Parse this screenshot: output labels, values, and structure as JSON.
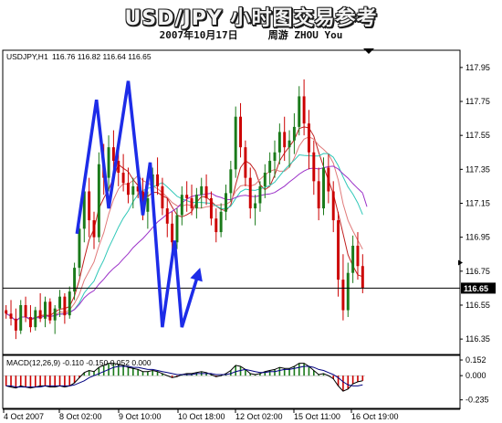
{
  "header": {
    "title": "USD/JPY 小时图交易参考",
    "date": "2007年10月17日",
    "author": "周游 ZHOU You"
  },
  "chart_data": {
    "type": "candlestick",
    "symbol_label": "USDJPY,H1",
    "ohlc_label": "116.76 116.82 116.64 116.65",
    "current_price_label": "116.65",
    "current_price": 116.65,
    "ylim": [
      116.27,
      117.96
    ],
    "y_ticks": [
      "117.95",
      "117.75",
      "117.55",
      "117.35",
      "117.15",
      "116.95",
      "116.75",
      "116.55",
      "116.35"
    ],
    "x_labels": [
      "4 Oct 2007",
      "8 Oct 02:00",
      "9 Oct 10:00",
      "10 Oct 18:00",
      "12 Oct 02:00",
      "15 Oct 11:00",
      "16 Oct 19:00"
    ],
    "candles": [
      [
        116.52,
        116.55,
        116.47,
        116.5
      ],
      [
        116.5,
        116.58,
        116.43,
        116.47
      ],
      [
        116.47,
        116.53,
        116.35,
        116.4
      ],
      [
        116.4,
        116.58,
        116.38,
        116.55
      ],
      [
        116.55,
        116.6,
        116.45,
        116.48
      ],
      [
        116.48,
        116.55,
        116.39,
        116.42
      ],
      [
        116.42,
        116.54,
        116.4,
        116.52
      ],
      [
        116.52,
        116.62,
        116.45,
        116.47
      ],
      [
        116.47,
        116.6,
        116.42,
        116.57
      ],
      [
        116.57,
        116.59,
        116.44,
        116.46
      ],
      [
        116.46,
        116.55,
        116.38,
        116.53
      ],
      [
        116.53,
        116.64,
        116.48,
        116.6
      ],
      [
        116.6,
        116.62,
        116.44,
        116.49
      ],
      [
        116.49,
        116.66,
        116.47,
        116.63
      ],
      [
        116.63,
        116.8,
        116.58,
        116.77
      ],
      [
        116.77,
        117.08,
        116.72,
        117.0
      ],
      [
        117.0,
        117.28,
        116.92,
        117.22
      ],
      [
        117.22,
        117.3,
        116.95,
        117.05
      ],
      [
        117.05,
        117.1,
        116.88,
        116.95
      ],
      [
        116.95,
        117.45,
        116.92,
        117.38
      ],
      [
        117.38,
        117.5,
        117.2,
        117.3
      ],
      [
        117.3,
        117.55,
        117.22,
        117.48
      ],
      [
        117.48,
        117.58,
        117.35,
        117.4
      ],
      [
        117.4,
        117.5,
        117.25,
        117.33
      ],
      [
        117.33,
        117.44,
        117.22,
        117.27
      ],
      [
        117.27,
        117.36,
        117.15,
        117.2
      ],
      [
        117.2,
        117.3,
        117.12,
        117.25
      ],
      [
        117.25,
        117.34,
        117.18,
        117.22
      ],
      [
        117.22,
        117.3,
        117.05,
        117.1
      ],
      [
        117.1,
        117.22,
        117.0,
        117.18
      ],
      [
        117.18,
        117.36,
        117.14,
        117.32
      ],
      [
        117.32,
        117.42,
        117.2,
        117.25
      ],
      [
        117.25,
        117.3,
        117.08,
        117.12
      ],
      [
        117.12,
        117.18,
        116.95,
        117.03
      ],
      [
        117.03,
        117.1,
        116.85,
        116.92
      ],
      [
        116.92,
        117.12,
        116.88,
        117.08
      ],
      [
        117.08,
        117.25,
        117.02,
        117.2
      ],
      [
        117.2,
        117.28,
        117.1,
        117.18
      ],
      [
        117.18,
        117.26,
        117.08,
        117.12
      ],
      [
        117.12,
        117.24,
        117.06,
        117.2
      ],
      [
        117.2,
        117.3,
        117.12,
        117.25
      ],
      [
        117.25,
        117.32,
        117.14,
        117.18
      ],
      [
        117.18,
        117.22,
        117.02,
        117.06
      ],
      [
        117.06,
        117.12,
        116.92,
        116.98
      ],
      [
        116.98,
        117.15,
        116.95,
        117.1
      ],
      [
        117.1,
        117.26,
        117.05,
        117.21
      ],
      [
        117.21,
        117.4,
        117.16,
        117.35
      ],
      [
        117.35,
        117.72,
        117.3,
        117.66
      ],
      [
        117.66,
        117.74,
        117.42,
        117.48
      ],
      [
        117.48,
        117.52,
        117.25,
        117.3
      ],
      [
        117.3,
        117.36,
        117.06,
        117.12
      ],
      [
        117.12,
        117.2,
        117.02,
        117.15
      ],
      [
        117.15,
        117.28,
        117.1,
        117.25
      ],
      [
        117.25,
        117.38,
        117.18,
        117.33
      ],
      [
        117.33,
        117.45,
        117.26,
        117.4
      ],
      [
        117.4,
        117.52,
        117.3,
        117.45
      ],
      [
        117.45,
        117.62,
        117.38,
        117.57
      ],
      [
        117.57,
        117.66,
        117.4,
        117.48
      ],
      [
        117.48,
        117.58,
        117.36,
        117.52
      ],
      [
        117.52,
        117.68,
        117.44,
        117.6
      ],
      [
        117.6,
        117.84,
        117.55,
        117.78
      ],
      [
        117.78,
        117.88,
        117.55,
        117.62
      ],
      [
        117.62,
        117.7,
        117.35,
        117.45
      ],
      [
        117.45,
        117.52,
        117.2,
        117.28
      ],
      [
        117.28,
        117.36,
        117.05,
        117.12
      ],
      [
        117.12,
        117.42,
        117.08,
        117.36
      ],
      [
        117.36,
        117.44,
        117.15,
        117.22
      ],
      [
        117.22,
        117.28,
        116.98,
        117.05
      ],
      [
        117.05,
        117.1,
        116.6,
        116.7
      ],
      [
        116.7,
        116.85,
        116.46,
        116.52
      ],
      [
        116.52,
        116.8,
        116.48,
        116.74
      ],
      [
        116.74,
        116.96,
        116.68,
        116.9
      ],
      [
        116.9,
        116.98,
        116.7,
        116.78
      ],
      [
        116.78,
        116.85,
        116.62,
        116.65
      ]
    ],
    "annotation_path": [
      [
        14.5,
        116.97
      ],
      [
        18.5,
        117.76
      ],
      [
        21,
        117.12
      ],
      [
        25,
        117.87
      ],
      [
        28,
        117.08
      ],
      [
        29.5,
        117.39
      ],
      [
        32,
        116.42
      ],
      [
        34.5,
        116.93
      ],
      [
        36,
        116.42
      ],
      [
        39.5,
        116.75
      ]
    ],
    "macd_label": "MACD(12,26,9) -0.110 -0.150 0.052 0.000",
    "macd_ylim": [
      -0.3,
      0.17
    ],
    "macd_y_ticks": [
      "0.152",
      "0.000",
      "-0.235"
    ],
    "macd_hist": [
      -0.1,
      -0.11,
      -0.12,
      -0.1,
      -0.11,
      -0.12,
      -0.11,
      -0.1,
      -0.1,
      -0.11,
      -0.11,
      -0.1,
      -0.11,
      -0.1,
      -0.07,
      -0.02,
      0.03,
      0.05,
      0.04,
      0.08,
      0.1,
      0.12,
      0.12,
      0.11,
      0.1,
      0.08,
      0.07,
      0.06,
      0.04,
      0.04,
      0.05,
      0.04,
      0.02,
      0.0,
      -0.02,
      -0.01,
      0.01,
      0.02,
      0.02,
      0.03,
      0.04,
      0.03,
      0.01,
      -0.01,
      0.0,
      0.02,
      0.05,
      0.1,
      0.09,
      0.06,
      0.02,
      0.01,
      0.02,
      0.04,
      0.05,
      0.06,
      0.08,
      0.07,
      0.07,
      0.09,
      0.12,
      0.12,
      0.09,
      0.05,
      0.01,
      0.02,
      0.0,
      -0.03,
      -0.1,
      -0.15,
      -0.13,
      -0.08,
      -0.06,
      -0.05
    ],
    "macd_signal": [
      -0.1,
      -0.1,
      -0.11,
      -0.11,
      -0.11,
      -0.11,
      -0.11,
      -0.11,
      -0.1,
      -0.1,
      -0.1,
      -0.1,
      -0.1,
      -0.1,
      -0.09,
      -0.07,
      -0.05,
      -0.02,
      0.0,
      0.02,
      0.04,
      0.06,
      0.08,
      0.09,
      0.09,
      0.09,
      0.08,
      0.08,
      0.07,
      0.06,
      0.06,
      0.05,
      0.04,
      0.03,
      0.02,
      0.01,
      0.01,
      0.01,
      0.01,
      0.02,
      0.02,
      0.02,
      0.02,
      0.01,
      0.01,
      0.01,
      0.02,
      0.04,
      0.05,
      0.06,
      0.05,
      0.04,
      0.03,
      0.03,
      0.04,
      0.04,
      0.05,
      0.06,
      0.06,
      0.07,
      0.08,
      0.09,
      0.09,
      0.08,
      0.06,
      0.05,
      0.03,
      0.01,
      -0.02,
      -0.06,
      -0.09,
      -0.1,
      -0.1,
      -0.09
    ],
    "colors": {
      "bull": "#1a7a1a",
      "bear": "#cc0000",
      "annotation": "#1d2ce8",
      "ma_fast": "#c02020",
      "ma_mid": "#e07a7a",
      "ma_slow": "#30c8b8",
      "ma_long": "#9b30c8",
      "signal": "#000080"
    }
  }
}
